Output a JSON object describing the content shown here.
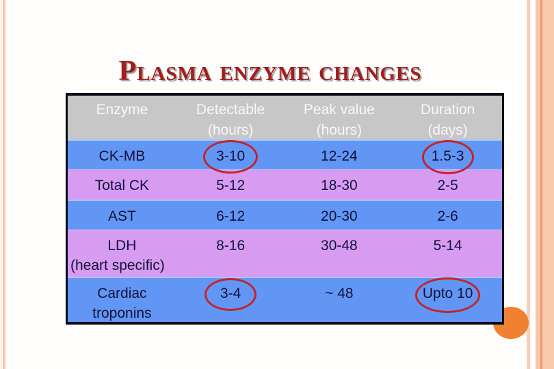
{
  "title": {
    "lead": "P",
    "rest": "lasma enzyme changes"
  },
  "table": {
    "headers": [
      {
        "line1": "Enzyme",
        "line2": ""
      },
      {
        "line1": "Detectable",
        "line2": "(hours)"
      },
      {
        "line1": "Peak value",
        "line2": "(hours)"
      },
      {
        "line1": "Duration",
        "line2": "(days)"
      }
    ],
    "rows": [
      {
        "enzyme": "CK-MB",
        "enzyme_line2": "",
        "detectable": "3-10",
        "peak": "12-24",
        "duration": "1.5-3",
        "circled": [
          "detectable",
          "duration"
        ]
      },
      {
        "enzyme": "Total CK",
        "enzyme_line2": "",
        "detectable": "5-12",
        "peak": "18-30",
        "duration": "2-5",
        "circled": []
      },
      {
        "enzyme": "AST",
        "enzyme_line2": "",
        "detectable": "6-12",
        "peak": "20-30",
        "duration": "2-6",
        "circled": []
      },
      {
        "enzyme": "LDH",
        "enzyme_line2": "(heart specific)",
        "detectable": "8-16",
        "peak": "30-48",
        "duration": "5-14",
        "circled": []
      },
      {
        "enzyme": "Cardiac",
        "enzyme_line2": "troponins",
        "detectable": "3-4",
        "peak": "~ 48",
        "duration": "Upto 10",
        "circled": [
          "detectable",
          "duration"
        ]
      }
    ]
  },
  "colors": {
    "title_red": "#a31d1d",
    "row_blue": "#6296f4",
    "row_purple": "#d79cf2",
    "header_gray": "#c7c7c7",
    "table_border": "#0a0a18",
    "annotation_circle_red": "#c5232b",
    "accent_orange": "#ef8130",
    "edge_stripe_salmon": "#f6c3ad",
    "text_navy": "#11123a"
  }
}
